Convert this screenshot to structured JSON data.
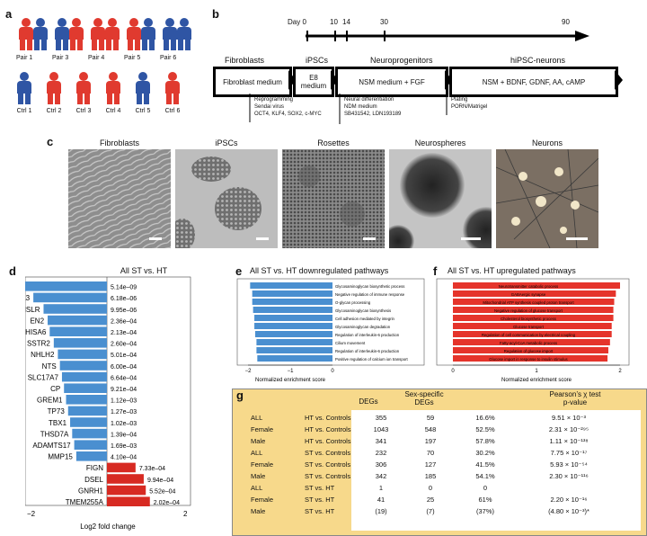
{
  "panel_a": {
    "letter": "a",
    "pairs": [
      "Pair 1",
      "Pair 3",
      "Pair 4",
      "Pair 5",
      "Pair 6"
    ],
    "ctrls": [
      "Ctrl 1",
      "Ctrl 2",
      "Ctrl 3",
      "Ctrl 4",
      "Ctrl 5",
      "Ctrl 6"
    ],
    "color_patient": "#e03a2f",
    "color_blue": "#2f55a4"
  },
  "panel_b": {
    "letter": "b",
    "day_label": "Day 0",
    "days": [
      "10",
      "14",
      "30",
      "90"
    ],
    "stages": [
      "Fibroblasts",
      "iPSCs",
      "Neuroprogenitors",
      "hiPSC-neurons"
    ],
    "media": [
      "Fibroblast medium",
      "E8 medium",
      "NSM medium + FGF",
      "NSM + BDNF, GDNF, AA, cAMP"
    ],
    "note1": [
      "Reprogramming",
      "Sendai virus",
      "OCT4, KLF4, SOX2, c-MYC"
    ],
    "note2": [
      "Neural differentiation",
      "NDM medium",
      "SB431542, LDN193189"
    ],
    "note3": [
      "Plating",
      "PORN/Matrigel"
    ]
  },
  "panel_c": {
    "letter": "c",
    "labels": [
      "Fibroblasts",
      "iPSCs",
      "Rosettes",
      "Neurospheres",
      "Neurons"
    ]
  },
  "panel_d": {
    "letter": "d",
    "chart_data": {
      "type": "bar",
      "orientation": "horizontal",
      "title": "All ST vs. HT",
      "xlabel": "Log2 fold change",
      "xlim": [
        -2,
        2
      ],
      "xticks": [
        "−2",
        "2"
      ],
      "categories": [
        "LHX1",
        "C1QL3",
        "ISLR",
        "EN2",
        "SHISA6",
        "SSTR2",
        "NHLH2",
        "NTS",
        "SLC17A7",
        "CP",
        "GREM1",
        "TP73",
        "TBX1",
        "THSD7A",
        "ADAMTS17",
        "MMP15",
        "FIGN",
        "DSEL",
        "GNRH1",
        "TMEM255A"
      ],
      "values": [
        -2.05,
        -1.8,
        -1.55,
        -1.45,
        -1.4,
        -1.3,
        -1.2,
        -1.15,
        -1.1,
        -1.05,
        -1.0,
        -0.95,
        -0.9,
        -0.85,
        -0.8,
        -0.75,
        0.7,
        0.9,
        0.95,
        1.05
      ],
      "pvalues": [
        "5.14e–09",
        "6.18e–06",
        "9.95e–06",
        "2.36e–04",
        "2.13e–04",
        "2.60e–04",
        "5.01e–04",
        "6.00e–04",
        "6.64e–04",
        "9.21e–04",
        "1.12e–03",
        "1.27e–03",
        "1.02e–03",
        "1.39e–04",
        "1.69e–03",
        "4.10e–04",
        "7.33e–04",
        "9.94e–04",
        "5.52e–04",
        "2.02e–04"
      ],
      "color_down": "#4a8fd0",
      "color_up": "#d72a22"
    }
  },
  "panel_e": {
    "letter": "e",
    "chart_data": {
      "type": "bar",
      "orientation": "horizontal",
      "title": "All ST vs. HT downregulated pathways",
      "xlabel": "Normalized enrichment score",
      "xlim": [
        -2,
        0
      ],
      "xticks": [
        "−2",
        "−1",
        "0"
      ],
      "categories": [
        "Glycosaminoglycan biosynthetic process",
        "Negative regulation of immune response",
        "O-glycan processing",
        "Glycosaminoglycan biosynthesis",
        "Cell adhesion mediated by integrin",
        "Glycosaminoglycan degradation",
        "Regulation of interleukin-6 production",
        "Cilium movement",
        "Regulation of interleukin-6 production",
        "Positive regulation of calcium ion transport"
      ],
      "values": [
        -1.95,
        -1.9,
        -1.9,
        -1.88,
        -1.85,
        -1.85,
        -1.83,
        -1.8,
        -1.8,
        -1.78
      ],
      "color": "#4a8fd0"
    }
  },
  "panel_f": {
    "letter": "f",
    "chart_data": {
      "type": "bar",
      "orientation": "horizontal",
      "title": "All ST vs. HT upregulated pathways",
      "xlabel": "Normalized enrichment score",
      "xlim": [
        0,
        2
      ],
      "xticks": [
        "0",
        "1",
        "2"
      ],
      "categories": [
        "Neurotransmitter catabolic process",
        "GABAergic synapse",
        "Mitochondrial ATP synthesis coupled proton transport",
        "Negative regulation of glucose transport",
        "Cholesterol biosynthetic process",
        "Glucose transport",
        "Regulation of cell communication by electrical coupling",
        "Fatty-acyl-CoA metabolic process",
        "Regulation of glucose import",
        "Glucose import in response to insulin stimulus"
      ],
      "values": [
        2.0,
        1.95,
        1.93,
        1.92,
        1.92,
        1.9,
        1.9,
        1.88,
        1.86,
        1.85
      ],
      "color": "#e5342b"
    }
  },
  "panel_g": {
    "letter": "g",
    "headers": {
      "degs": "DEGs",
      "sex_specific": "Sex-specific\nDEGs",
      "pearson": "Pearson’s χ test\np-value"
    },
    "chart_data": {
      "type": "table",
      "rows": [
        [
          "ALL",
          "HT vs. Controls",
          "355",
          "59",
          "16.6%",
          "9.51 × 10⁻³"
        ],
        [
          "Female",
          "HT vs. Controls",
          "1043",
          "548",
          "52.5%",
          "2.31 × 10⁻²⁹⁵"
        ],
        [
          "Male",
          "HT vs. Controls",
          "341",
          "197",
          "57.8%",
          "1.11 × 10⁻¹³⁸"
        ],
        [
          "ALL",
          "ST vs. Controls",
          "232",
          "70",
          "30.2%",
          "7.75 × 10⁻¹⁷"
        ],
        [
          "Female",
          "ST vs. Controls",
          "306",
          "127",
          "41.5%",
          "5.93 × 10⁻⁵⁴"
        ],
        [
          "Male",
          "ST vs. Controls",
          "342",
          "185",
          "54.1%",
          "2.30 × 10⁻¹¹⁶"
        ],
        [
          "ALL",
          "ST vs. HT",
          "1",
          "0",
          "0",
          ""
        ],
        [
          "Female",
          "ST vs. HT",
          "41",
          "25",
          "61%",
          "2.20 × 10⁻¹⁶"
        ],
        [
          "Male",
          "ST vs. HT",
          "(19)",
          "(7)",
          "(37%)",
          "(4.80 × 10⁻³)*"
        ]
      ]
    }
  }
}
